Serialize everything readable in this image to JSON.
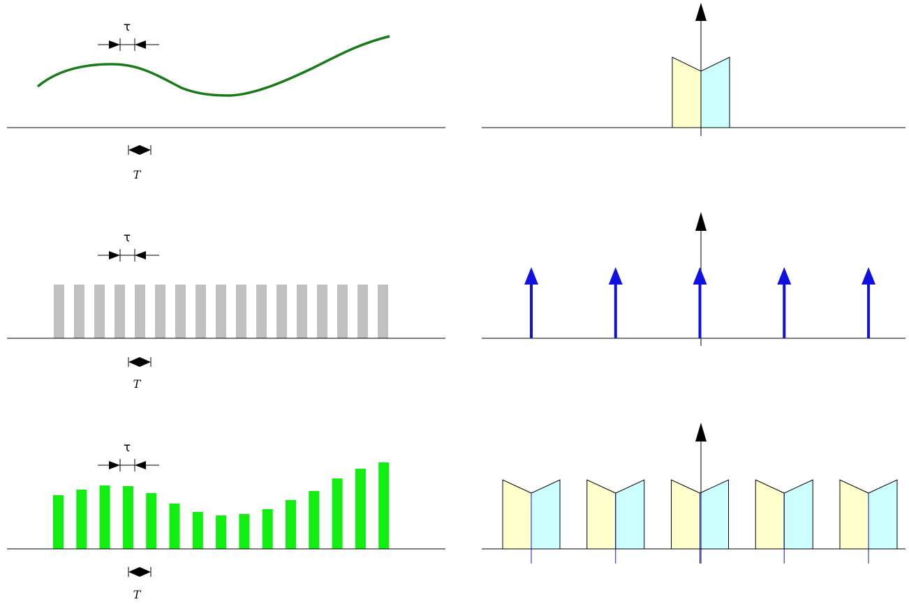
{
  "labels": {
    "tau": "τ",
    "period": "T"
  },
  "colors": {
    "signal_curve": "#1a7a1a",
    "carrier_pulse": "#c0c0c0",
    "sampled_pulse": "#11ee11",
    "impulse": "#1010e0",
    "spectrum_left": "#ffffcc",
    "spectrum_right": "#ccffff",
    "axis": "#000000"
  },
  "panels": {
    "time_signal": {
      "label_tau": "τ",
      "label_T": "T"
    },
    "time_carrier": {
      "label_tau": "τ",
      "label_T": "T",
      "pulse_count": 17
    },
    "time_sampled": {
      "label_tau": "τ",
      "label_T": "T",
      "pulse_count": 15
    },
    "freq_signal": {
      "copies": 1
    },
    "freq_carrier": {
      "impulse_count": 5
    },
    "freq_sampled": {
      "copies": 5
    }
  }
}
